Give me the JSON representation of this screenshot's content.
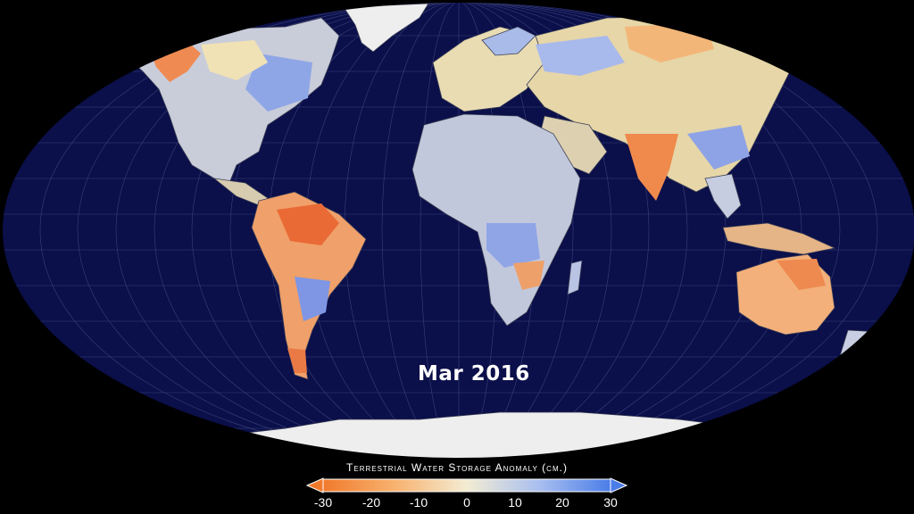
{
  "date_label": "Mar 2016",
  "legend": {
    "title": "Terrestrial Water Storage Anomaly (cm.)",
    "ticks": [
      "-30",
      "-20",
      "-10",
      "0",
      "10",
      "20",
      "30"
    ],
    "colors": {
      "deficit_strong": "#f07a2c",
      "deficit": "#f8b26f",
      "neutral": "#f3ecd3",
      "surplus": "#a9bff0",
      "surplus_strong": "#4b7de8"
    }
  },
  "map": {
    "ocean_color": "#0b0f4a",
    "ice_color": "#f2f2f2",
    "land_base": "#c4c9d6"
  }
}
